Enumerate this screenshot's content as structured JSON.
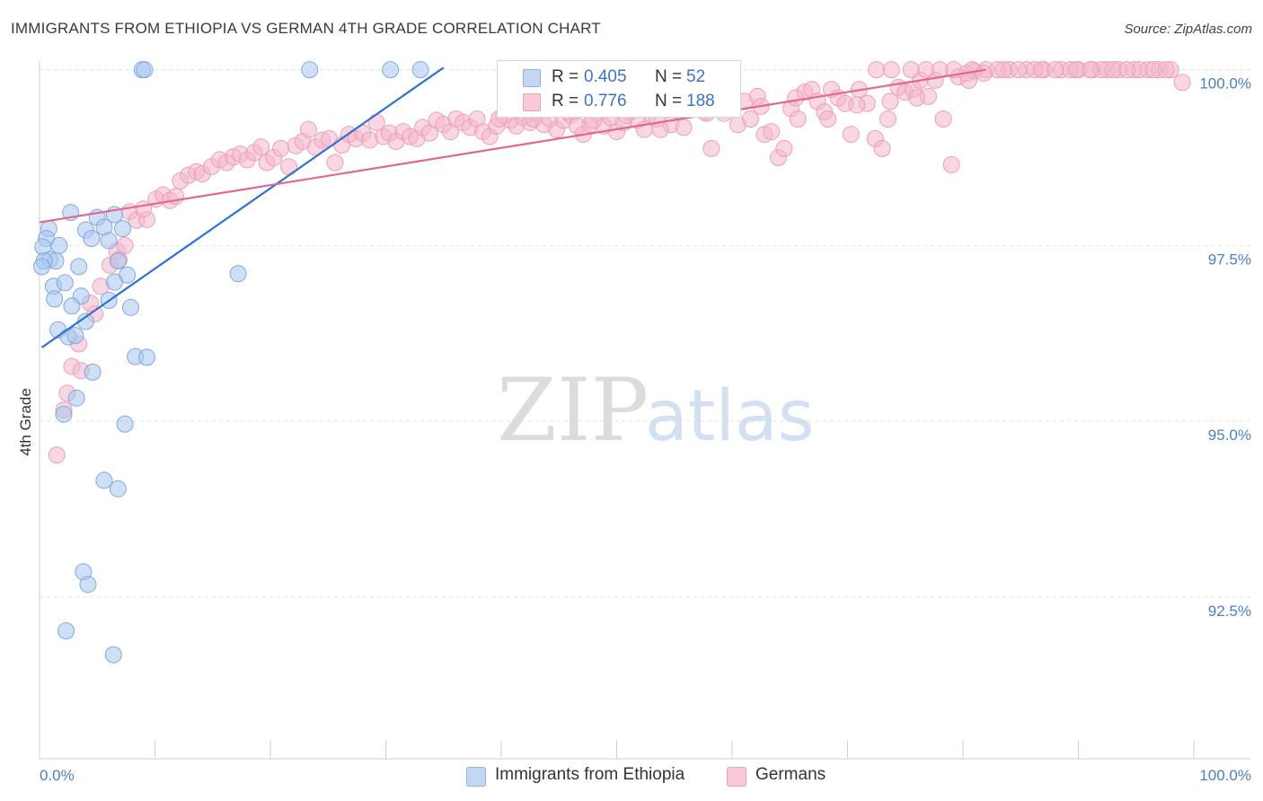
{
  "title": "IMMIGRANTS FROM ETHIOPIA VS GERMAN 4TH GRADE CORRELATION CHART",
  "source": "Source: ZipAtlas.com",
  "watermark": {
    "zip": "ZIP",
    "atlas": "atlas"
  },
  "colors": {
    "blue_fill": "#a8c6ef",
    "blue_line": "#2f72d0",
    "pink_fill": "#f4b6cb",
    "pink_line": "#e06893",
    "tick_label": "#4a7fc9",
    "grid": "#e2e2e2"
  },
  "legend_top": {
    "rows": [
      {
        "r_label": "R =",
        "r_value": "0.405",
        "n_label": "N =",
        "n_value": "52"
      },
      {
        "r_label": "R =",
        "r_value": "0.776",
        "n_label": "N =",
        "n_value": "188"
      }
    ]
  },
  "legend_bottom": [
    "Immigrants from Ethiopia",
    "Germans"
  ],
  "chart_data": {
    "type": "scatter",
    "title": "IMMIGRANTS FROM ETHIOPIA VS GERMAN 4TH GRADE CORRELATION CHART",
    "xlabel": "",
    "ylabel": "4th Grade",
    "xlim": [
      0,
      100
    ],
    "ylim": [
      90.2,
      100.2
    ],
    "x_tick_labels": [
      "0.0%",
      "100.0%"
    ],
    "y_ticks": [
      {
        "value": 92.5,
        "label": "92.5%"
      },
      {
        "value": 95.0,
        "label": "95.0%"
      },
      {
        "value": 97.5,
        "label": "97.5%"
      },
      {
        "value": 100.0,
        "label": "100.0%"
      }
    ],
    "grid": true,
    "legend_position": "top-center",
    "series": [
      {
        "name": "Immigrants from Ethiopia",
        "color": "#a8c6ef",
        "r": 0.405,
        "n": 52,
        "trendline": [
          [
            0.2,
            96.05
          ],
          [
            35.0,
            100.03
          ]
        ],
        "points": [
          [
            8.9,
            100.0
          ],
          [
            9.1,
            100.0
          ],
          [
            23.4,
            100.0
          ],
          [
            30.4,
            100.0
          ],
          [
            33.0,
            100.0
          ],
          [
            2.7,
            97.97
          ],
          [
            5.0,
            97.9
          ],
          [
            6.5,
            97.94
          ],
          [
            4.0,
            97.72
          ],
          [
            5.6,
            97.76
          ],
          [
            7.2,
            97.74
          ],
          [
            0.8,
            97.74
          ],
          [
            0.6,
            97.6
          ],
          [
            1.7,
            97.5
          ],
          [
            0.3,
            97.48
          ],
          [
            4.5,
            97.6
          ],
          [
            6.0,
            97.57
          ],
          [
            0.9,
            97.3
          ],
          [
            1.4,
            97.28
          ],
          [
            0.4,
            97.28
          ],
          [
            0.2,
            97.2
          ],
          [
            3.4,
            97.2
          ],
          [
            6.8,
            97.28
          ],
          [
            7.6,
            97.08
          ],
          [
            17.2,
            97.1
          ],
          [
            1.2,
            96.92
          ],
          [
            2.2,
            96.97
          ],
          [
            6.5,
            96.98
          ],
          [
            1.3,
            96.74
          ],
          [
            3.6,
            96.78
          ],
          [
            6.0,
            96.72
          ],
          [
            2.8,
            96.64
          ],
          [
            7.9,
            96.62
          ],
          [
            4.0,
            96.42
          ],
          [
            1.6,
            96.3
          ],
          [
            2.5,
            96.2
          ],
          [
            3.1,
            96.22
          ],
          [
            8.3,
            95.92
          ],
          [
            9.3,
            95.91
          ],
          [
            4.6,
            95.7
          ],
          [
            3.2,
            95.33
          ],
          [
            2.1,
            95.1
          ],
          [
            7.4,
            94.96
          ],
          [
            5.6,
            94.16
          ],
          [
            6.8,
            94.04
          ],
          [
            3.8,
            92.86
          ],
          [
            4.2,
            92.68
          ],
          [
            2.3,
            92.02
          ],
          [
            6.4,
            91.68
          ]
        ]
      },
      {
        "name": "Germans",
        "color": "#f4b6cb",
        "r": 0.776,
        "n": 188,
        "trendline": [
          [
            0.0,
            97.83
          ],
          [
            82.0,
            100.0
          ]
        ],
        "points": [
          [
            1.5,
            94.52
          ],
          [
            2.1,
            95.16
          ],
          [
            2.4,
            95.4
          ],
          [
            2.8,
            95.78
          ],
          [
            3.6,
            95.72
          ],
          [
            3.4,
            96.1
          ],
          [
            4.8,
            96.53
          ],
          [
            4.4,
            96.68
          ],
          [
            5.3,
            96.92
          ],
          [
            6.1,
            97.22
          ],
          [
            6.7,
            97.42
          ],
          [
            7.4,
            97.5
          ],
          [
            6.9,
            97.3
          ],
          [
            7.8,
            97.98
          ],
          [
            8.4,
            97.86
          ],
          [
            9.3,
            97.87
          ],
          [
            10.1,
            98.16
          ],
          [
            9.0,
            98.02
          ],
          [
            10.7,
            98.22
          ],
          [
            11.3,
            98.14
          ],
          [
            11.8,
            98.2
          ],
          [
            12.2,
            98.42
          ],
          [
            12.9,
            98.5
          ],
          [
            13.6,
            98.55
          ],
          [
            14.1,
            98.52
          ],
          [
            14.9,
            98.62
          ],
          [
            15.6,
            98.72
          ],
          [
            16.2,
            98.68
          ],
          [
            16.8,
            98.76
          ],
          [
            17.4,
            98.8
          ],
          [
            18.0,
            98.72
          ],
          [
            18.6,
            98.82
          ],
          [
            19.2,
            98.9
          ],
          [
            19.7,
            98.68
          ],
          [
            20.3,
            98.75
          ],
          [
            20.9,
            98.88
          ],
          [
            21.6,
            98.62
          ],
          [
            22.2,
            98.92
          ],
          [
            22.8,
            98.98
          ],
          [
            23.3,
            99.15
          ],
          [
            23.9,
            98.9
          ],
          [
            24.5,
            99.0
          ],
          [
            25.1,
            99.02
          ],
          [
            25.6,
            98.68
          ],
          [
            26.2,
            98.93
          ],
          [
            26.8,
            99.08
          ],
          [
            27.4,
            99.02
          ],
          [
            28.0,
            99.1
          ],
          [
            28.6,
            99.0
          ],
          [
            29.2,
            99.25
          ],
          [
            29.8,
            99.05
          ],
          [
            30.3,
            99.1
          ],
          [
            30.9,
            98.98
          ],
          [
            31.5,
            99.12
          ],
          [
            32.1,
            99.05
          ],
          [
            32.7,
            99.02
          ],
          [
            33.2,
            99.18
          ],
          [
            33.8,
            99.1
          ],
          [
            34.4,
            99.28
          ],
          [
            35.0,
            99.22
          ],
          [
            35.6,
            99.12
          ],
          [
            36.1,
            99.3
          ],
          [
            36.7,
            99.25
          ],
          [
            37.3,
            99.18
          ],
          [
            37.9,
            99.3
          ],
          [
            38.4,
            99.12
          ],
          [
            39.0,
            99.05
          ],
          [
            39.6,
            99.2
          ],
          [
            40.2,
            99.35
          ],
          [
            40.8,
            99.28
          ],
          [
            41.3,
            99.2
          ],
          [
            41.9,
            99.32
          ],
          [
            42.5,
            99.25
          ],
          [
            43.1,
            99.38
          ],
          [
            43.7,
            99.22
          ],
          [
            44.2,
            99.3
          ],
          [
            44.8,
            99.15
          ],
          [
            45.4,
            99.28
          ],
          [
            46.0,
            99.35
          ],
          [
            46.6,
            99.2
          ],
          [
            47.1,
            99.08
          ],
          [
            47.7,
            99.22
          ],
          [
            48.3,
            99.38
          ],
          [
            48.9,
            99.2
          ],
          [
            49.5,
            99.32
          ],
          [
            50.0,
            99.12
          ],
          [
            50.6,
            99.25
          ],
          [
            51.2,
            99.4
          ],
          [
            51.8,
            99.28
          ],
          [
            52.4,
            99.15
          ],
          [
            52.9,
            99.38
          ],
          [
            53.5,
            99.3
          ],
          [
            54.1,
            99.45
          ],
          [
            54.7,
            99.22
          ],
          [
            55.3,
            99.42
          ],
          [
            55.8,
            99.18
          ],
          [
            56.4,
            99.5
          ],
          [
            57.0,
            99.58
          ],
          [
            57.6,
            99.4
          ],
          [
            58.2,
            98.88
          ],
          [
            58.7,
            99.6
          ],
          [
            59.3,
            99.38
          ],
          [
            59.9,
            99.52
          ],
          [
            60.5,
            99.22
          ],
          [
            61.1,
            99.55
          ],
          [
            61.6,
            99.3
          ],
          [
            62.2,
            99.62
          ],
          [
            62.8,
            99.08
          ],
          [
            63.4,
            99.12
          ],
          [
            64.0,
            98.75
          ],
          [
            64.5,
            98.88
          ],
          [
            65.1,
            99.45
          ],
          [
            65.7,
            99.3
          ],
          [
            66.3,
            99.68
          ],
          [
            66.9,
            99.72
          ],
          [
            67.4,
            99.55
          ],
          [
            68.0,
            99.4
          ],
          [
            68.6,
            99.72
          ],
          [
            69.2,
            99.6
          ],
          [
            69.8,
            99.52
          ],
          [
            70.3,
            99.08
          ],
          [
            71.0,
            99.72
          ],
          [
            71.7,
            99.52
          ],
          [
            72.4,
            99.02
          ],
          [
            73.0,
            98.88
          ],
          [
            73.7,
            99.55
          ],
          [
            74.4,
            99.75
          ],
          [
            75.0,
            99.68
          ],
          [
            75.7,
            99.72
          ],
          [
            76.3,
            99.85
          ],
          [
            77.0,
            99.62
          ],
          [
            77.6,
            99.85
          ],
          [
            78.3,
            99.3
          ],
          [
            79.0,
            98.65
          ],
          [
            79.6,
            99.9
          ],
          [
            80.3,
            99.95
          ],
          [
            81.0,
            99.98
          ],
          [
            82.0,
            100.0
          ],
          [
            84.0,
            100.0
          ],
          [
            85.5,
            100.0
          ],
          [
            87.0,
            100.0
          ],
          [
            88.5,
            100.0
          ],
          [
            90.0,
            100.0
          ],
          [
            91.2,
            100.0
          ],
          [
            92.5,
            100.0
          ],
          [
            93.5,
            100.0
          ],
          [
            94.8,
            100.0
          ],
          [
            96.0,
            100.0
          ],
          [
            97.0,
            100.0
          ],
          [
            98.0,
            100.0
          ],
          [
            99.0,
            99.82
          ],
          [
            83.0,
            100.0
          ],
          [
            86.2,
            100.0
          ],
          [
            89.3,
            100.0
          ],
          [
            92.0,
            100.0
          ],
          [
            95.3,
            100.0
          ],
          [
            72.5,
            100.0
          ],
          [
            73.8,
            100.0
          ],
          [
            75.5,
            100.0
          ],
          [
            76.8,
            100.0
          ],
          [
            78.0,
            100.0
          ],
          [
            79.2,
            100.0
          ],
          [
            80.8,
            100.0
          ],
          [
            81.8,
            99.95
          ],
          [
            83.5,
            100.0
          ],
          [
            84.8,
            100.0
          ],
          [
            86.8,
            100.0
          ],
          [
            88.0,
            100.0
          ],
          [
            89.8,
            100.0
          ],
          [
            91.0,
            100.0
          ],
          [
            93.0,
            100.0
          ],
          [
            94.2,
            100.0
          ],
          [
            96.5,
            100.0
          ],
          [
            97.6,
            100.0
          ],
          [
            55.5,
            99.5
          ],
          [
            57.8,
            99.38
          ],
          [
            60.0,
            99.6
          ],
          [
            62.5,
            99.48
          ],
          [
            65.5,
            99.6
          ],
          [
            68.3,
            99.3
          ],
          [
            70.8,
            99.5
          ],
          [
            73.5,
            99.3
          ],
          [
            76.0,
            99.6
          ],
          [
            80.5,
            99.85
          ],
          [
            39.8,
            99.3
          ],
          [
            42.8,
            99.3
          ],
          [
            45.8,
            99.4
          ],
          [
            48.0,
            99.28
          ],
          [
            50.8,
            99.35
          ],
          [
            53.8,
            99.15
          ]
        ]
      }
    ]
  }
}
